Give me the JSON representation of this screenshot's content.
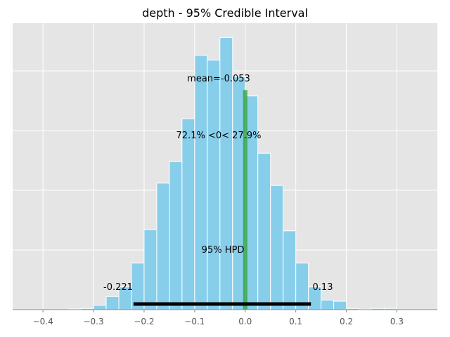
{
  "chart_data": {
    "type": "bar",
    "title": "depth - 95% Credible Interval",
    "xlim": [
      -0.46,
      0.38
    ],
    "ylim": [
      0,
      1200
    ],
    "grid": true,
    "bins": [
      {
        "x0": -0.35,
        "x1": -0.325,
        "count": 3
      },
      {
        "x0": -0.325,
        "x1": -0.3,
        "count": 5
      },
      {
        "x0": -0.3,
        "x1": -0.275,
        "count": 18
      },
      {
        "x0": -0.275,
        "x1": -0.25,
        "count": 55
      },
      {
        "x0": -0.25,
        "x1": -0.225,
        "count": 95
      },
      {
        "x0": -0.225,
        "x1": -0.2,
        "count": 195
      },
      {
        "x0": -0.2,
        "x1": -0.175,
        "count": 335
      },
      {
        "x0": -0.175,
        "x1": -0.15,
        "count": 530
      },
      {
        "x0": -0.15,
        "x1": -0.125,
        "count": 620
      },
      {
        "x0": -0.125,
        "x1": -0.1,
        "count": 800
      },
      {
        "x0": -0.1,
        "x1": -0.075,
        "count": 1065
      },
      {
        "x0": -0.075,
        "x1": -0.05,
        "count": 1045
      },
      {
        "x0": -0.05,
        "x1": -0.025,
        "count": 1140
      },
      {
        "x0": -0.025,
        "x1": 0.0,
        "count": 975
      },
      {
        "x0": 0.0,
        "x1": 0.025,
        "count": 895
      },
      {
        "x0": 0.025,
        "x1": 0.05,
        "count": 655
      },
      {
        "x0": 0.05,
        "x1": 0.075,
        "count": 520
      },
      {
        "x0": 0.075,
        "x1": 0.1,
        "count": 330
      },
      {
        "x0": 0.1,
        "x1": 0.125,
        "count": 195
      },
      {
        "x0": 0.125,
        "x1": 0.15,
        "count": 95
      },
      {
        "x0": 0.15,
        "x1": 0.175,
        "count": 40
      },
      {
        "x0": 0.175,
        "x1": 0.2,
        "count": 35
      },
      {
        "x0": 0.2,
        "x1": 0.225,
        "count": 5
      },
      {
        "x0": 0.225,
        "x1": 0.25,
        "count": 2
      },
      {
        "x0": 0.25,
        "x1": 0.275,
        "count": 5
      },
      {
        "x0": 0.275,
        "x1": 0.3,
        "count": 5
      }
    ],
    "xticks": [
      -0.4,
      -0.3,
      -0.2,
      -0.1,
      0.0,
      0.1,
      0.2,
      0.3
    ],
    "xtick_labels": [
      "−0.4",
      "−0.3",
      "−0.2",
      "−0.1",
      "0.0",
      "0.1",
      "0.2",
      "0.3"
    ],
    "yticks": [
      0,
      250,
      500,
      750,
      1000
    ],
    "reference_line": {
      "x": 0,
      "y_top": 920,
      "color": "#2ca02c"
    },
    "hpd": {
      "low": -0.221,
      "high": 0.13,
      "low_label": "-0.221",
      "high_label": "0.13",
      "label": "95% HPD",
      "color": "#000000"
    },
    "annotations": {
      "mean": "mean=-0.053",
      "ref": "72.1% <0< 27.9%"
    },
    "colors": {
      "bar_fill": "#87ceeb",
      "bar_edge": "#ffffff",
      "plot_bg": "#e5e5e5",
      "grid": "#ffffff",
      "axis": "#888888"
    }
  }
}
